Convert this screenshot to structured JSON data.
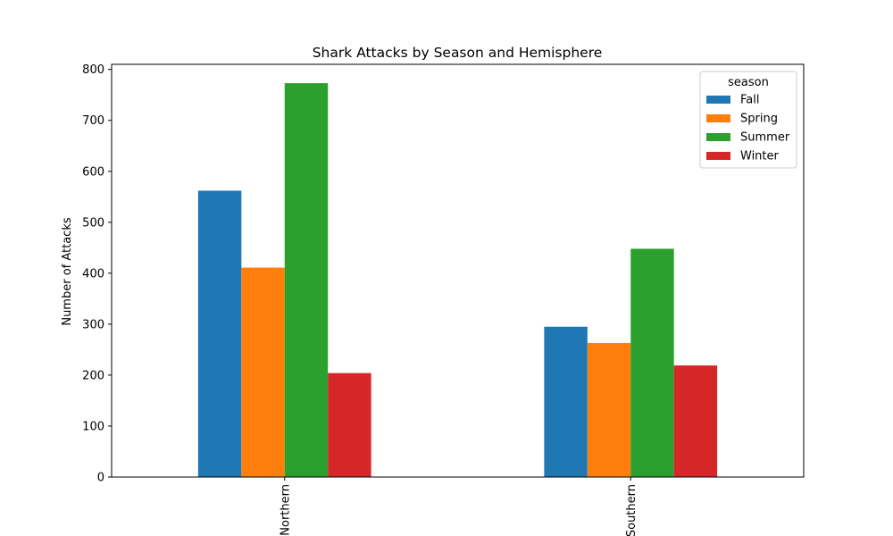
{
  "chart_data": {
    "type": "bar",
    "title": "Shark Attacks by Season and Hemisphere",
    "xlabel": "",
    "ylabel": "Number of Attacks",
    "categories": [
      "Northern",
      "Southern"
    ],
    "ylim": [
      0,
      810
    ],
    "yticks": [
      0,
      100,
      200,
      300,
      400,
      500,
      600,
      700,
      800
    ],
    "grid": false,
    "legend": {
      "title": "season",
      "placement": "top-right"
    },
    "series": [
      {
        "name": "Fall",
        "color": "#1f77b4",
        "values": [
          562,
          295
        ]
      },
      {
        "name": "Spring",
        "color": "#ff7f0e",
        "values": [
          411,
          263
        ]
      },
      {
        "name": "Summer",
        "color": "#2ca02c",
        "values": [
          773,
          448
        ]
      },
      {
        "name": "Winter",
        "color": "#d62728",
        "values": [
          204,
          219
        ]
      }
    ]
  }
}
